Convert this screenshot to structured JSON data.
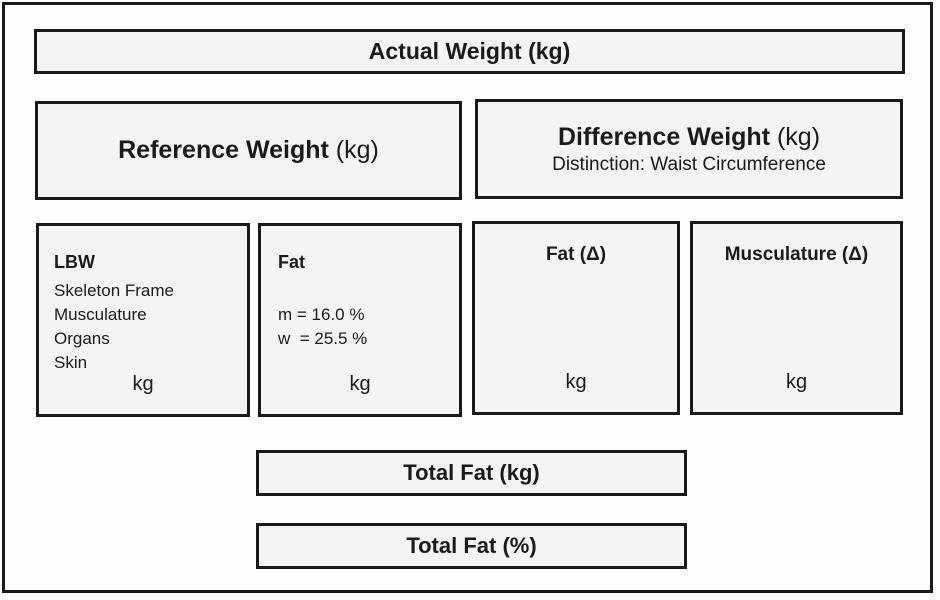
{
  "colors": {
    "background": "#ffffff",
    "box_fill": "#f4f4f4",
    "border": "#1a1a1a",
    "text": "#1a1a1a"
  },
  "boxes": {
    "actual_weight": {
      "title": "Actual Weight (kg)"
    },
    "reference_weight": {
      "title": "Reference Weight",
      "unit": "(kg)"
    },
    "difference_weight": {
      "title": "Difference Weight",
      "unit": "(kg)",
      "subtitle": "Distinction: Waist Circumference"
    },
    "lbw": {
      "title": "LBW",
      "items": [
        "Skeleton Frame",
        "Musculature",
        "Organs",
        "Skin"
      ],
      "unit_label": "kg"
    },
    "fat": {
      "title": "Fat",
      "values": [
        "m = 16.0 %",
        "w  = 25.5 %"
      ],
      "unit_label": "kg"
    },
    "fat_delta": {
      "title": "Fat (Δ)",
      "unit_label": "kg"
    },
    "musculature_delta": {
      "title": "Musculature (Δ)",
      "unit_label": "kg"
    },
    "total_fat_kg": {
      "title": "Total Fat (kg)"
    },
    "total_fat_percent": {
      "title": "Total Fat (%)"
    }
  }
}
